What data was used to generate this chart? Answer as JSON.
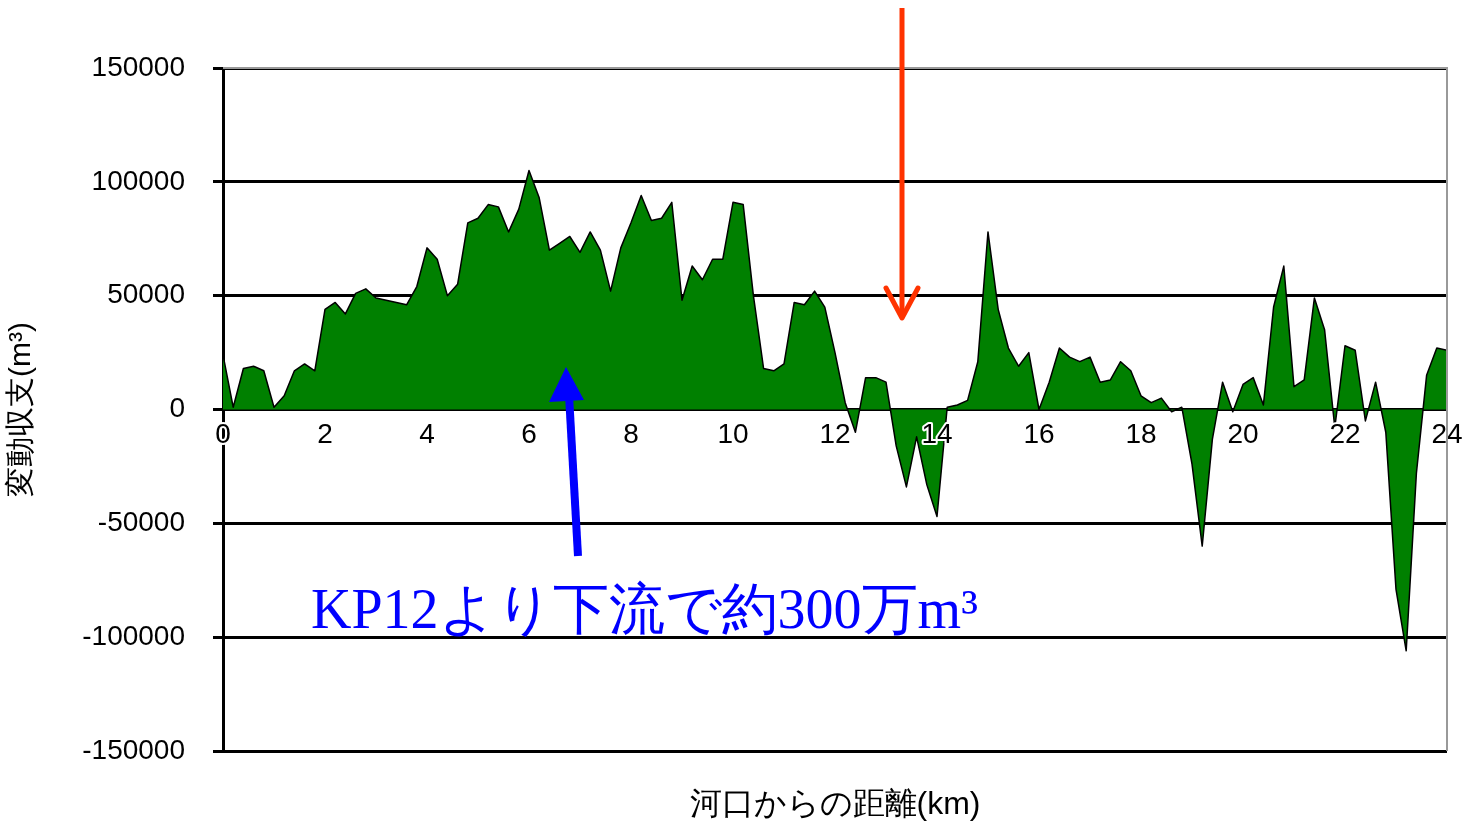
{
  "chart_data": {
    "type": "area",
    "xlabel": "河口からの距離(km)",
    "ylabel": "変動収支(m³)",
    "x": [
      0,
      0.2,
      0.4,
      0.6,
      0.8,
      1,
      1.2,
      1.4,
      1.6,
      1.8,
      2,
      2.2,
      2.4,
      2.6,
      2.8,
      3,
      3.2,
      3.4,
      3.6,
      3.8,
      4,
      4.2,
      4.4,
      4.6,
      4.8,
      5,
      5.2,
      5.4,
      5.6,
      5.8,
      6,
      6.2,
      6.4,
      6.6,
      6.8,
      7,
      7.2,
      7.4,
      7.6,
      7.8,
      8,
      8.2,
      8.4,
      8.6,
      8.8,
      9,
      9.2,
      9.4,
      9.6,
      9.8,
      10,
      10.2,
      10.4,
      10.6,
      10.8,
      11,
      11.2,
      11.4,
      11.6,
      11.8,
      12,
      12.2,
      12.4,
      12.6,
      12.8,
      13,
      13.2,
      13.4,
      13.6,
      13.8,
      14,
      14.2,
      14.4,
      14.6,
      14.8,
      15,
      15.2,
      15.4,
      15.6,
      15.8,
      16,
      16.2,
      16.4,
      16.6,
      16.8,
      17,
      17.2,
      17.4,
      17.6,
      17.8,
      18,
      18.2,
      18.4,
      18.6,
      18.8,
      19,
      19.2,
      19.4,
      19.6,
      19.8,
      20,
      20.2,
      20.4,
      20.6,
      20.8,
      21,
      21.2,
      21.4,
      21.6,
      21.8,
      22,
      22.2,
      22.4,
      22.6,
      22.8,
      23,
      23.2,
      23.4,
      23.6,
      23.8,
      24
    ],
    "series": [
      {
        "color": "#008000",
        "values": [
          24000,
          1000,
          18000,
          19000,
          17000,
          1000,
          6000,
          17000,
          20000,
          17000,
          44000,
          47000,
          42000,
          51000,
          53000,
          49000,
          48000,
          47000,
          46000,
          54000,
          71000,
          66000,
          50000,
          55000,
          82000,
          84000,
          90000,
          89000,
          78000,
          88000,
          105000,
          93000,
          70000,
          73000,
          76000,
          69000,
          78000,
          70000,
          52000,
          71000,
          82000,
          94000,
          83000,
          84000,
          91000,
          48000,
          63000,
          57000,
          66000,
          66000,
          91000,
          90000,
          50000,
          18000,
          17000,
          20000,
          47000,
          46000,
          52000,
          45000,
          25000,
          3000,
          -10000,
          14000,
          14000,
          12000,
          -16000,
          -34000,
          -12000,
          -33000,
          -47000,
          1000,
          2000,
          4000,
          21000,
          78000,
          44000,
          27000,
          19000,
          25000,
          0,
          12000,
          27000,
          23000,
          21000,
          23000,
          12000,
          13000,
          21000,
          17000,
          6000,
          3000,
          5000,
          -1000,
          1000,
          -24000,
          -60000,
          -13000,
          12000,
          -1000,
          11000,
          14000,
          2000,
          45000,
          63000,
          10000,
          13000,
          49000,
          35000,
          -8000,
          28000,
          26000,
          -5000,
          12000,
          -10000,
          -79000,
          -106000,
          -28000,
          15000,
          27000,
          26000
        ]
      }
    ],
    "xlim": [
      0,
      24
    ],
    "xticks": [
      0,
      2,
      4,
      6,
      8,
      10,
      12,
      14,
      16,
      18,
      20,
      22,
      24
    ],
    "ylim": [
      -150000,
      150000
    ],
    "yticks": [
      -150000,
      -100000,
      -50000,
      0,
      50000,
      100000,
      150000
    ],
    "grid": "y",
    "legend": false,
    "annotations": [
      "KP12より下流で約300万m³"
    ]
  }
}
